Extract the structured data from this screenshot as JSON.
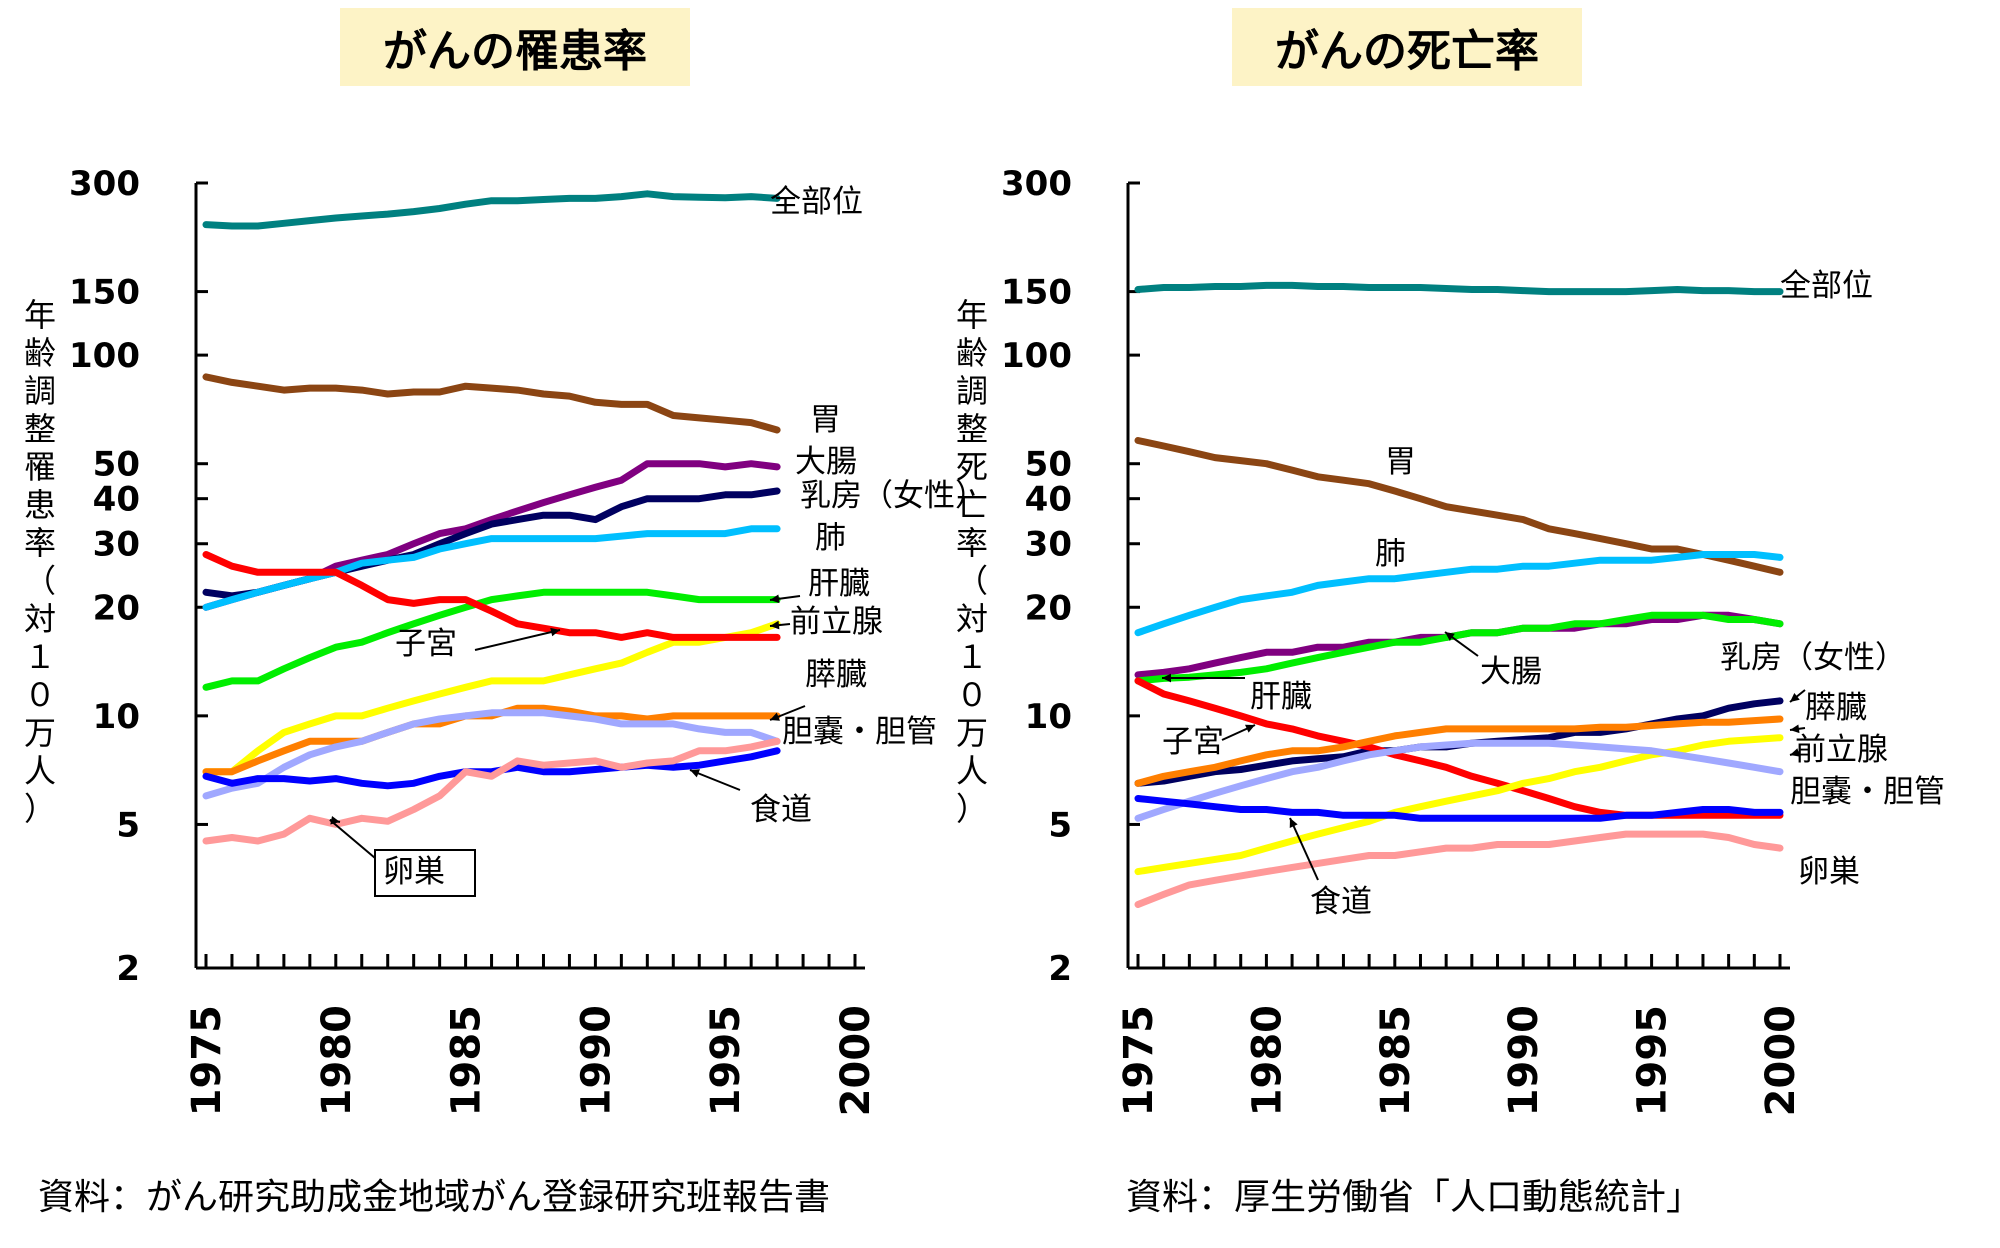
{
  "panels": [
    {
      "title": "がんの罹患率",
      "source": "資料：がん研究助成金地域がん登録研究班報告書"
    },
    {
      "title": "がんの死亡率",
      "source": "資料：厚生労働省「人口動態統計」"
    }
  ],
  "chart_data": [
    {
      "type": "line",
      "title": "がんの罹患率",
      "ylabel": "年齢調整罹患率（対１０万人）",
      "yscale": "log",
      "ylim": [
        2,
        300
      ],
      "xlim": [
        1975,
        2000
      ],
      "yticks": [
        2,
        5,
        10,
        20,
        30,
        40,
        50,
        100,
        150,
        300
      ],
      "xticks": [
        1975,
        1980,
        1985,
        1990,
        1995,
        2000
      ],
      "x": [
        1975,
        1976,
        1977,
        1978,
        1979,
        1980,
        1981,
        1982,
        1983,
        1984,
        1985,
        1986,
        1987,
        1988,
        1989,
        1990,
        1991,
        1992,
        1993,
        1994,
        1995,
        1996,
        1997
      ],
      "series": [
        {
          "name": "全部位",
          "color": "#008080",
          "values": [
            230,
            228,
            228,
            232,
            236,
            240,
            243,
            246,
            250,
            255,
            262,
            268,
            268,
            270,
            272,
            272,
            275,
            280,
            275,
            274,
            273,
            275,
            272
          ]
        },
        {
          "name": "胃",
          "color": "#8b4513",
          "values": [
            87,
            84,
            82,
            80,
            81,
            81,
            80,
            78,
            79,
            79,
            82,
            81,
            80,
            78,
            77,
            74,
            73,
            73,
            68,
            67,
            66,
            65,
            62
          ]
        },
        {
          "name": "大腸",
          "color": "#800080",
          "values": [
            20,
            21,
            22,
            23,
            24,
            26,
            27,
            28,
            30,
            32,
            33,
            35,
            37,
            39,
            41,
            43,
            45,
            50,
            50,
            50,
            49,
            50,
            49
          ]
        },
        {
          "name": "乳房（女性）",
          "color": "#000060",
          "values": [
            22,
            21.5,
            22,
            23,
            24,
            25,
            26,
            27,
            28,
            30,
            32,
            34,
            35,
            36,
            36,
            35,
            38,
            40,
            40,
            40,
            41,
            41,
            42
          ]
        },
        {
          "name": "肺",
          "color": "#00bfff",
          "values": [
            20,
            21,
            22,
            23,
            24,
            25,
            26.5,
            27,
            27.5,
            29,
            30,
            31,
            31,
            31,
            31,
            31,
            31.5,
            32,
            32,
            32,
            32,
            33,
            33
          ]
        },
        {
          "name": "肝臓",
          "color": "#00ee00",
          "values": [
            12,
            12.5,
            12.5,
            13.5,
            14.5,
            15.5,
            16,
            17,
            18,
            19,
            20,
            21,
            21.5,
            22,
            22,
            22,
            22,
            22,
            21.5,
            21,
            21,
            21,
            21
          ]
        },
        {
          "name": "前立腺",
          "color": "#ffff00",
          "values": [
            7,
            7,
            8,
            9,
            9.5,
            10,
            10,
            10.5,
            11,
            11.5,
            12,
            12.5,
            12.5,
            12.5,
            13,
            13.5,
            14,
            15,
            16,
            16,
            16.5,
            17,
            18
          ]
        },
        {
          "name": "子宮",
          "color": "#ff0000",
          "values": [
            28,
            26,
            25,
            25,
            25,
            25,
            23,
            21,
            20.5,
            21,
            21,
            19.5,
            18,
            17.5,
            17,
            17,
            16.5,
            17,
            16.5,
            16.5,
            16.5,
            16.5,
            16.5
          ]
        },
        {
          "name": "膵臓",
          "color": "#ff7f00",
          "values": [
            7,
            7,
            7.5,
            8,
            8.5,
            8.5,
            8.5,
            9,
            9.5,
            9.5,
            10,
            10,
            10.5,
            10.5,
            10.3,
            10,
            10,
            9.8,
            10,
            10,
            10,
            10,
            10
          ]
        },
        {
          "name": "胆嚢・胆管",
          "color": "#a0a8ff",
          "values": [
            6,
            6.3,
            6.5,
            7.2,
            7.8,
            8.2,
            8.5,
            9,
            9.5,
            9.8,
            10,
            10.2,
            10.2,
            10.2,
            10,
            9.8,
            9.5,
            9.5,
            9.5,
            9.2,
            9,
            9,
            8.5
          ]
        },
        {
          "name": "食道",
          "color": "#0000ff",
          "values": [
            6.8,
            6.5,
            6.7,
            6.7,
            6.6,
            6.7,
            6.5,
            6.4,
            6.5,
            6.8,
            7,
            7,
            7.2,
            7,
            7,
            7.1,
            7.2,
            7.3,
            7.2,
            7.3,
            7.5,
            7.7,
            8
          ]
        },
        {
          "name": "卵巣",
          "color": "#ff9999",
          "values": [
            4.5,
            4.6,
            4.5,
            4.7,
            5.2,
            5,
            5.2,
            5.1,
            5.5,
            6,
            7,
            6.8,
            7.5,
            7.3,
            7.4,
            7.5,
            7.2,
            7.4,
            7.5,
            8,
            8,
            8.2,
            8.5
          ]
        }
      ],
      "label_order": [
        "全部位",
        "胃",
        "大腸",
        "乳房（女性）",
        "肺",
        "肝臓",
        "前立腺",
        "子宮",
        "膵臓",
        "胆嚢・胆管",
        "食道",
        "卵巣"
      ]
    },
    {
      "type": "line",
      "title": "がんの死亡率",
      "ylabel": "年齢調整死亡率（対１０万人）",
      "yscale": "log",
      "ylim": [
        2,
        300
      ],
      "xlim": [
        1975,
        2000
      ],
      "yticks": [
        2,
        5,
        10,
        20,
        30,
        40,
        50,
        100,
        150,
        300
      ],
      "xticks": [
        1975,
        1980,
        1985,
        1990,
        1995,
        2000
      ],
      "x": [
        1975,
        1976,
        1977,
        1978,
        1979,
        1980,
        1981,
        1982,
        1983,
        1984,
        1985,
        1986,
        1987,
        1988,
        1989,
        1990,
        1991,
        1992,
        1993,
        1994,
        1995,
        1996,
        1997,
        1998,
        1999,
        2000
      ],
      "series": [
        {
          "name": "全部位",
          "color": "#008080",
          "values": [
            152,
            154,
            154,
            155,
            155,
            156,
            156,
            155,
            155,
            154,
            154,
            154,
            153,
            152,
            152,
            151,
            150,
            150,
            150,
            150,
            151,
            152,
            151,
            151,
            150,
            150
          ]
        },
        {
          "name": "胃",
          "color": "#8b4513",
          "values": [
            58,
            56,
            54,
            52,
            51,
            50,
            48,
            46,
            45,
            44,
            42,
            40,
            38,
            37,
            36,
            35,
            33,
            32,
            31,
            30,
            29,
            29,
            28,
            27,
            26,
            25
          ]
        },
        {
          "name": "肺",
          "color": "#00bfff",
          "values": [
            17,
            18,
            19,
            20,
            21,
            21.5,
            22,
            23,
            23.5,
            24,
            24,
            24.5,
            25,
            25.5,
            25.5,
            26,
            26,
            26.5,
            27,
            27,
            27,
            27.5,
            28,
            28,
            28,
            27.5
          ]
        },
        {
          "name": "大腸",
          "color": "#800080",
          "values": [
            13,
            13.2,
            13.5,
            14,
            14.5,
            15,
            15,
            15.5,
            15.5,
            16,
            16,
            16.5,
            16.5,
            17,
            17,
            17.5,
            17.5,
            17.5,
            18,
            18,
            18.5,
            18.5,
            19,
            19,
            18.5,
            18
          ]
        },
        {
          "name": "肝臓",
          "color": "#00ee00",
          "values": [
            12.5,
            12.7,
            12.8,
            13,
            13.2,
            13.5,
            14,
            14.5,
            15,
            15.5,
            16,
            16,
            16.5,
            17,
            17,
            17.5,
            17.5,
            18,
            18,
            18.5,
            19,
            19,
            19,
            18.5,
            18.5,
            18
          ]
        },
        {
          "name": "乳房（女性）",
          "color": "#000060",
          "values": [
            6.5,
            6.6,
            6.8,
            7,
            7.1,
            7.3,
            7.5,
            7.6,
            7.7,
            8,
            8,
            8.2,
            8.2,
            8.4,
            8.5,
            8.6,
            8.7,
            9,
            9,
            9.2,
            9.5,
            9.8,
            10,
            10.5,
            10.8,
            11
          ]
        },
        {
          "name": "子宮",
          "color": "#ff0000",
          "values": [
            12.5,
            11.5,
            11,
            10.5,
            10,
            9.5,
            9.2,
            8.8,
            8.5,
            8.2,
            7.8,
            7.5,
            7.2,
            6.8,
            6.5,
            6.2,
            5.9,
            5.6,
            5.4,
            5.3,
            5.3,
            5.3,
            5.3,
            5.3,
            5.3,
            5.3
          ]
        },
        {
          "name": "膵臓",
          "color": "#ff7f00",
          "values": [
            6.5,
            6.8,
            7,
            7.2,
            7.5,
            7.8,
            8,
            8,
            8.2,
            8.5,
            8.8,
            9,
            9.2,
            9.2,
            9.2,
            9.2,
            9.2,
            9.2,
            9.3,
            9.3,
            9.4,
            9.5,
            9.6,
            9.6,
            9.7,
            9.8
          ]
        },
        {
          "name": "前立腺",
          "color": "#ffff00",
          "values": [
            3.7,
            3.8,
            3.9,
            4,
            4.1,
            4.3,
            4.5,
            4.7,
            4.9,
            5.1,
            5.4,
            5.6,
            5.8,
            6,
            6.2,
            6.5,
            6.7,
            7,
            7.2,
            7.5,
            7.8,
            8,
            8.3,
            8.5,
            8.6,
            8.7
          ]
        },
        {
          "name": "胆嚢・胆管",
          "color": "#a0a8ff",
          "values": [
            5.2,
            5.5,
            5.8,
            6.1,
            6.4,
            6.7,
            7,
            7.2,
            7.5,
            7.8,
            8,
            8.2,
            8.3,
            8.4,
            8.4,
            8.4,
            8.4,
            8.3,
            8.2,
            8.1,
            8,
            7.8,
            7.6,
            7.4,
            7.2,
            7
          ]
        },
        {
          "name": "食道",
          "color": "#0000ff",
          "values": [
            5.9,
            5.8,
            5.7,
            5.6,
            5.5,
            5.5,
            5.4,
            5.4,
            5.3,
            5.3,
            5.3,
            5.2,
            5.2,
            5.2,
            5.2,
            5.2,
            5.2,
            5.2,
            5.2,
            5.3,
            5.3,
            5.4,
            5.5,
            5.5,
            5.4,
            5.4
          ]
        },
        {
          "name": "卵巣",
          "color": "#ff9999",
          "values": [
            3,
            3.2,
            3.4,
            3.5,
            3.6,
            3.7,
            3.8,
            3.9,
            4,
            4.1,
            4.1,
            4.2,
            4.3,
            4.3,
            4.4,
            4.4,
            4.4,
            4.5,
            4.6,
            4.7,
            4.7,
            4.7,
            4.7,
            4.6,
            4.4,
            4.3
          ]
        }
      ],
      "label_order": [
        "全部位",
        "胃",
        "肺",
        "大腸",
        "乳房（女性）",
        "肝臓",
        "膵臓",
        "子宮",
        "前立腺",
        "胆嚢・胆管",
        "食道",
        "卵巣"
      ]
    }
  ]
}
